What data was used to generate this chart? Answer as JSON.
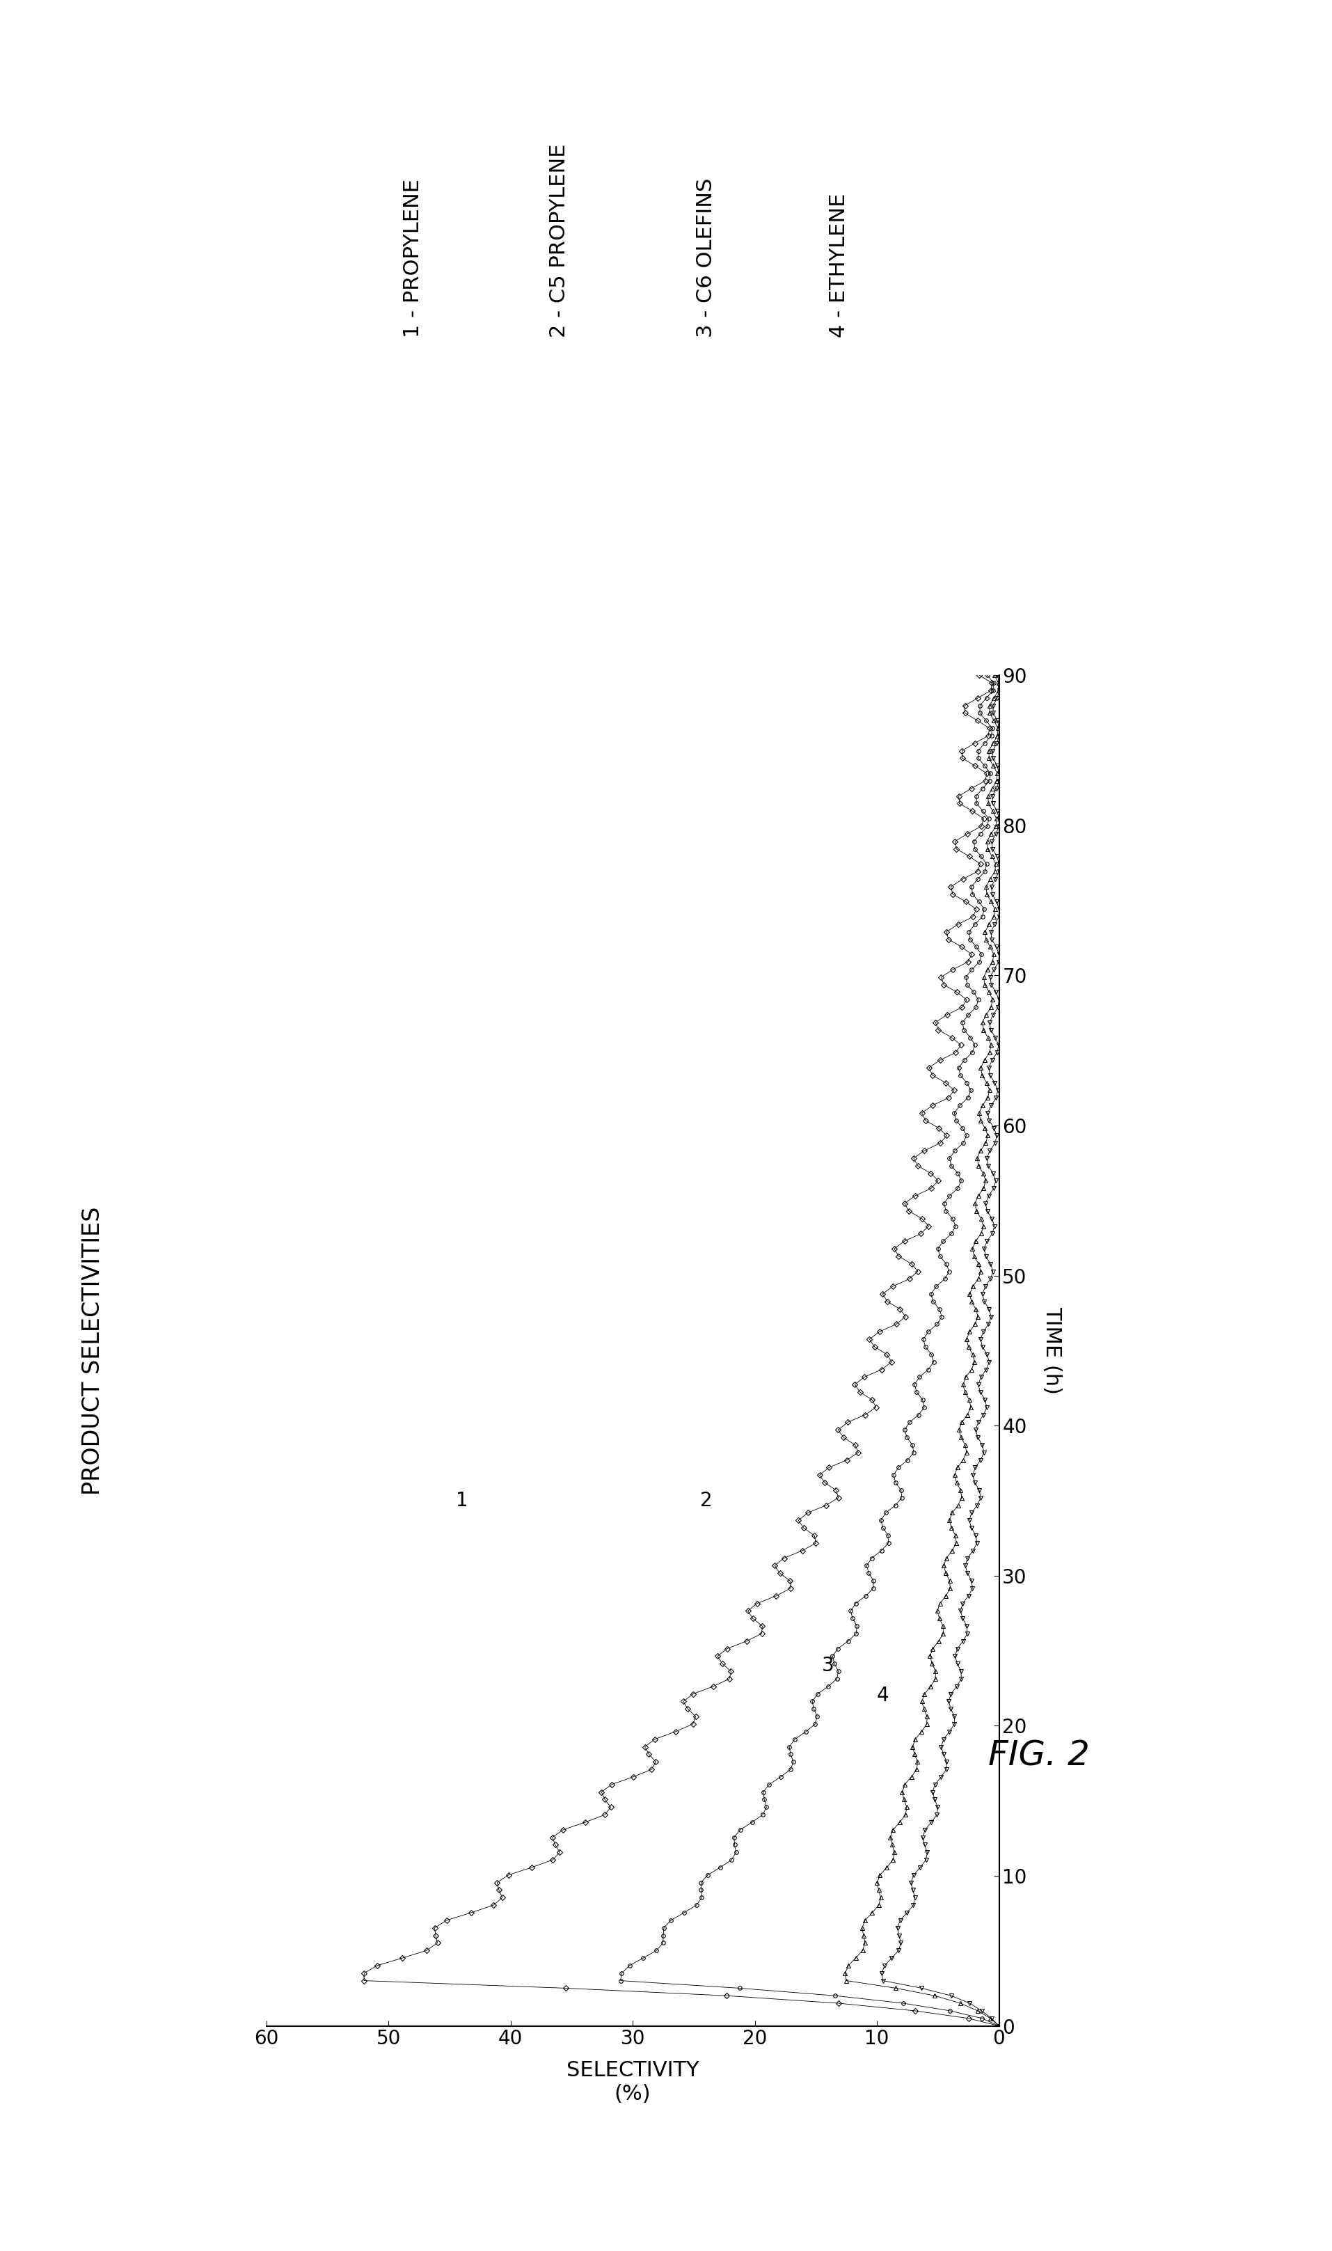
{
  "title": "FIG. 2",
  "selectivity_label": "SELECTIVITY\n(%)",
  "time_label": "TIME (h)",
  "product_label": "PRODUCT SELECTIVITIES",
  "xlim": [
    0,
    60
  ],
  "ylim": [
    0,
    90
  ],
  "xticks": [
    0,
    10,
    20,
    30,
    40,
    50,
    60
  ],
  "yticks": [
    0,
    10,
    20,
    30,
    40,
    50,
    60,
    70,
    80,
    90
  ],
  "legend_entries": [
    "1 - PROPYLENE",
    "2 - C5 PROPYLENE",
    "3 - C6 OLEFINS",
    "4 - ETHYLENE"
  ],
  "series": [
    {
      "name": "propylene",
      "peak_val": 52,
      "peak_time": 3.0,
      "decay_tau": 25.0,
      "flat_add": 0.0,
      "noise_amp": 1.2,
      "marker": "D",
      "markersize": 4,
      "label": "1",
      "label_time": 35,
      "label_sel": 44
    },
    {
      "name": "c5_propylene",
      "peak_val": 31,
      "peak_time": 3.0,
      "decay_tau": 25.0,
      "flat_add": 0.0,
      "noise_amp": 0.6,
      "marker": "o",
      "markersize": 4,
      "label": "2",
      "label_time": 35,
      "label_sel": 24
    },
    {
      "name": "c6_olefins",
      "peak_val": 12.5,
      "peak_time": 3.0,
      "decay_tau": 25.0,
      "flat_add": 0.0,
      "noise_amp": 0.4,
      "marker": "^",
      "markersize": 5,
      "label": "3",
      "label_time": 25,
      "label_sel": 14
    },
    {
      "name": "ethylene",
      "peak_val": 9.5,
      "peak_time": 3.0,
      "decay_tau": 20.0,
      "flat_add": 0.0,
      "noise_amp": 0.4,
      "marker": "v",
      "markersize": 5,
      "label": "4",
      "label_time": 25,
      "label_sel": 10
    }
  ],
  "background_color": "#ffffff",
  "line_color": "#000000",
  "fontsize_ticks": 20,
  "fontsize_labels": 22,
  "fontsize_legend": 22,
  "fontsize_title": 36,
  "fontsize_curve_labels": 20
}
